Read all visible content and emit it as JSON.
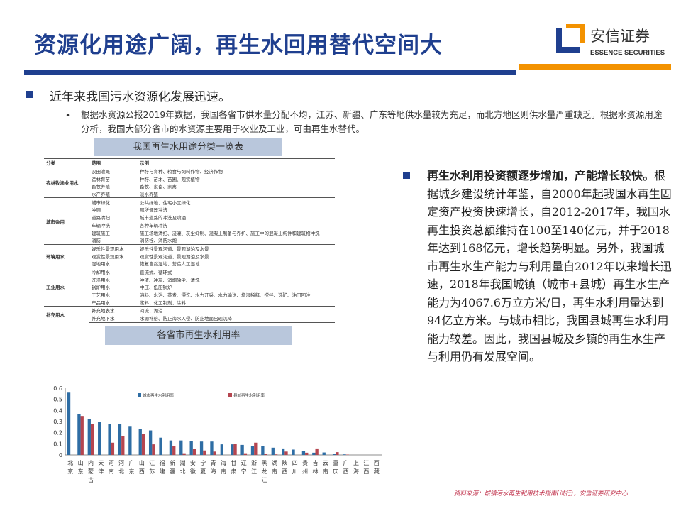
{
  "header": {
    "title": "资源化用途广阔，再生水回用替代空间大",
    "logo_cn": "安信证券",
    "logo_en": "ESSENCE SECURITIES",
    "colors": {
      "brand_blue": "#1f3f8f",
      "brand_orange": "#f39200"
    }
  },
  "section1": {
    "heading": "近年来我国污水资源化发展迅速。",
    "bullet": "根据水资源公报2019年数据，我国各省市供水量分配不均，江苏、新疆、广东等地供水量较为充足，而北方地区则供水量严重缺乏。根据水资源用途分析，我国大部分省市的水资源主要用于农业及工业，可由再生水替代。"
  },
  "table": {
    "caption": "我国再生水用途分类一览表",
    "headers": [
      "分类",
      "范围",
      "示例"
    ],
    "groups": [
      {
        "category": "农林牧渔业用水",
        "rows": [
          [
            "农田灌溉",
            "种籽与育种、粮食与饲料作物、经济作物"
          ],
          [
            "造林育苗",
            "种籽、苗木、苗圃、观赏植物"
          ],
          [
            "畜牧养殖",
            "畜牧、家畜、家禽"
          ],
          [
            "水产养殖",
            "淡水养殖"
          ]
        ]
      },
      {
        "category": "城市杂用",
        "rows": [
          [
            "城市绿化",
            "公共绿地、住宅小区绿化"
          ],
          [
            "冲厕",
            "厕所便器冲洗"
          ],
          [
            "道路清扫",
            "城市道路的冲洗及喷洒"
          ],
          [
            "车辆冲洗",
            "各种车辆冲洗"
          ],
          [
            "建筑施工",
            "施工场地清扫、浇灌、灰尘抑制、混凝土制备与养护、施工中的混凝土构件和建筑物冲洗"
          ],
          [
            "消防",
            "消防栓、消防水炮"
          ]
        ]
      },
      {
        "category": "环境用水",
        "rows": [
          [
            "娱乐性景观用水",
            "娱乐性景观河道、景观湖泊及水景"
          ],
          [
            "观赏性景观用水",
            "观赏性景观河道、景观湖泊及水景"
          ],
          [
            "湿地用水",
            "恢复自然湿地、营造人工湿地"
          ]
        ]
      },
      {
        "category": "工业用水",
        "rows": [
          [
            "冷却用水",
            "直流式、循环式"
          ],
          [
            "洗涤用水",
            "冲渣、冲灰、消烟除尘、清洗"
          ],
          [
            "锅炉用水",
            "中压、低压锅炉"
          ],
          [
            "工艺用水",
            "溶料、水浴、蒸煮、漂洗、水力开采、水力输送、增湿稀释、搅拌、选矿、油田回注"
          ],
          [
            "产品用水",
            "浆料、化工制剂、涂料"
          ]
        ]
      },
      {
        "category": "补充用水",
        "rows": [
          [
            "补充地表水",
            "河流、湖泊"
          ],
          [
            "补充地下水",
            "水源补给、防止海水入侵、防止地面出现沉降"
          ]
        ]
      }
    ]
  },
  "chart_caption": "各省市再生水利用率",
  "chart_data": {
    "type": "bar",
    "ylim": [
      0,
      0.6
    ],
    "yticks": [
      "0",
      "0.1",
      "0.2",
      "0.3",
      "0.4",
      "0.5",
      "0.6"
    ],
    "grid": false,
    "legend": "top",
    "categories": [
      "北京",
      "山东",
      "内蒙古",
      "天津",
      "河南",
      "河北",
      "广东",
      "山西",
      "江苏",
      "福建",
      "新疆",
      "湖北",
      "安徽",
      "宁夏",
      "青海",
      "海南",
      "甘肃",
      "辽宁",
      "浙江",
      "黑龙江",
      "湖南",
      "陕西",
      "四川",
      "贵州",
      "吉林",
      "云南",
      "重庆",
      "广西",
      "上海",
      "江西",
      "西藏"
    ],
    "series": [
      {
        "name": "城市再生水利用率",
        "color": "#2e6da4",
        "values": [
          0.56,
          0.37,
          0.32,
          0.3,
          0.28,
          0.28,
          0.26,
          0.23,
          0.22,
          0.155,
          0.13,
          0.13,
          0.125,
          0.12,
          0.12,
          0.095,
          0.095,
          0.09,
          0.08,
          0.078,
          0.065,
          0.058,
          0.048,
          0.037,
          0.02,
          0.022,
          0.012,
          0.005,
          0,
          0,
          0
        ]
      },
      {
        "name": "县城再生水利用率",
        "color": "#b5454f",
        "values": [
          0,
          0.35,
          0.28,
          0,
          0.11,
          0.17,
          0,
          0.19,
          0.095,
          0,
          0.08,
          0.015,
          0.055,
          0.04,
          0.03,
          0,
          0.1,
          0.015,
          0.11,
          0.01,
          0.005,
          0.03,
          0,
          0.02,
          0.058,
          0,
          0.025,
          0.003,
          0,
          0,
          0
        ]
      }
    ]
  },
  "section2": {
    "lead": "再生水利用投资额逐步增加，产能增长较快。",
    "body": "根据城乡建设统计年鉴，自2000年起我国水再生固定资产投资快速增长，自2012-2017年，我国水再生投资总额维持在100至140亿元，并于2018年达到168亿元，增长趋势明显。另外，我国城市再生水生产能力与利用量自2012年以来增长迅速，2018年我国城镇（城市+县城）再生水生产能力为4067.6万立方米/日，再生水利用量达到94亿立方米。与城市相比，我国县城再生水利用能力较差。因此，我国县城及乡镇的再生水生产与利用仍有发展空间。"
  },
  "source": "资料来源：城镇污水再生利用技术指南(试行)，安信证券研究中心"
}
